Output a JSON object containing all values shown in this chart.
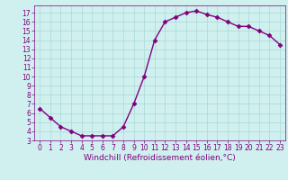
{
  "x": [
    0,
    1,
    2,
    3,
    4,
    5,
    6,
    7,
    8,
    9,
    10,
    11,
    12,
    13,
    14,
    15,
    16,
    17,
    18,
    19,
    20,
    21,
    22,
    23
  ],
  "y": [
    6.5,
    5.5,
    4.5,
    4.0,
    3.5,
    3.5,
    3.5,
    3.5,
    4.5,
    7.0,
    10.0,
    14.0,
    16.0,
    16.5,
    17.0,
    17.2,
    16.8,
    16.5,
    16.0,
    15.5,
    15.5,
    15.0,
    14.5,
    13.5
  ],
  "line_color": "#800080",
  "marker": "D",
  "marker_size": 2.5,
  "xlabel": "Windchill (Refroidissement éolien,°C)",
  "xlim": [
    -0.5,
    23.5
  ],
  "ylim": [
    3,
    17.8
  ],
  "yticks": [
    3,
    4,
    5,
    6,
    7,
    8,
    9,
    10,
    11,
    12,
    13,
    14,
    15,
    16,
    17
  ],
  "xticks": [
    0,
    1,
    2,
    3,
    4,
    5,
    6,
    7,
    8,
    9,
    10,
    11,
    12,
    13,
    14,
    15,
    16,
    17,
    18,
    19,
    20,
    21,
    22,
    23
  ],
  "background_color": "#cff0ee",
  "grid_color": "#aad8d5",
  "line_width": 1.0,
  "font_color": "#800080",
  "tick_font_size": 5.5,
  "xlabel_font_size": 6.5,
  "fig_width": 3.2,
  "fig_height": 2.0,
  "dpi": 100
}
